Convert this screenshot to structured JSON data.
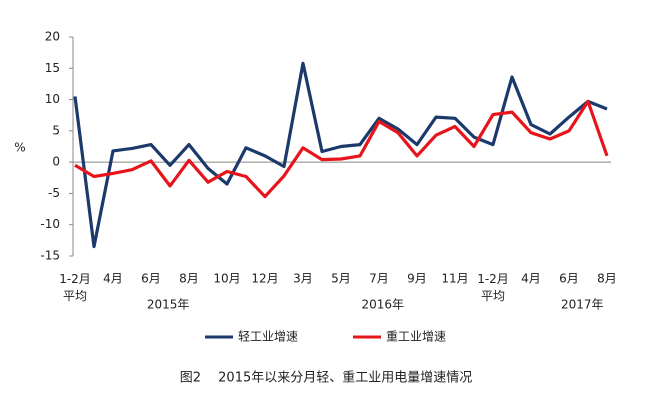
{
  "chart_data": {
    "type": "line",
    "y_label": "%",
    "caption": "图2　 2015年以来分月轻、重工业用电量增速情况",
    "categories": [
      "1-2月\n平均",
      null,
      "4月",
      null,
      "6月",
      null,
      "8月",
      null,
      "10月",
      null,
      "12月",
      null,
      "3月",
      null,
      "5月",
      null,
      "7月",
      null,
      "9月",
      null,
      "11月",
      null,
      "1-2月\n平均",
      null,
      "4月",
      null,
      "6月",
      null,
      "8月"
    ],
    "year_labels": [
      "2015年",
      "2016年",
      "2017年"
    ],
    "series": [
      {
        "name": "轻工业增速",
        "color": "#1b3a6b",
        "values": [
          10.5,
          -13.5,
          1.8,
          2.2,
          2.8,
          -0.5,
          2.8,
          -1,
          -3.5,
          2.3,
          1,
          -0.7,
          15.8,
          1.7,
          2.5,
          2.8,
          7,
          5.3,
          2.8,
          7.2,
          7,
          4,
          2.8,
          13.6,
          6,
          4.5,
          7.2,
          9.7,
          8.5
        ]
      },
      {
        "name": "重工业增速",
        "color": "#e8141b",
        "values": [
          -0.5,
          -2.3,
          -1.8,
          -1.2,
          0.2,
          -3.8,
          0.3,
          -3.2,
          -1.5,
          -2.3,
          -5.5,
          -2.2,
          2.3,
          0.4,
          0.5,
          1,
          6.5,
          4.7,
          1,
          4.3,
          5.7,
          2.5,
          7.6,
          8,
          4.7,
          3.7,
          5,
          9.7,
          1
        ]
      }
    ],
    "ylim": [
      -15,
      20
    ],
    "yticks": [
      20,
      15,
      10,
      5,
      0,
      -5,
      -10,
      -15
    ],
    "grid": false,
    "legend": "bottom"
  }
}
